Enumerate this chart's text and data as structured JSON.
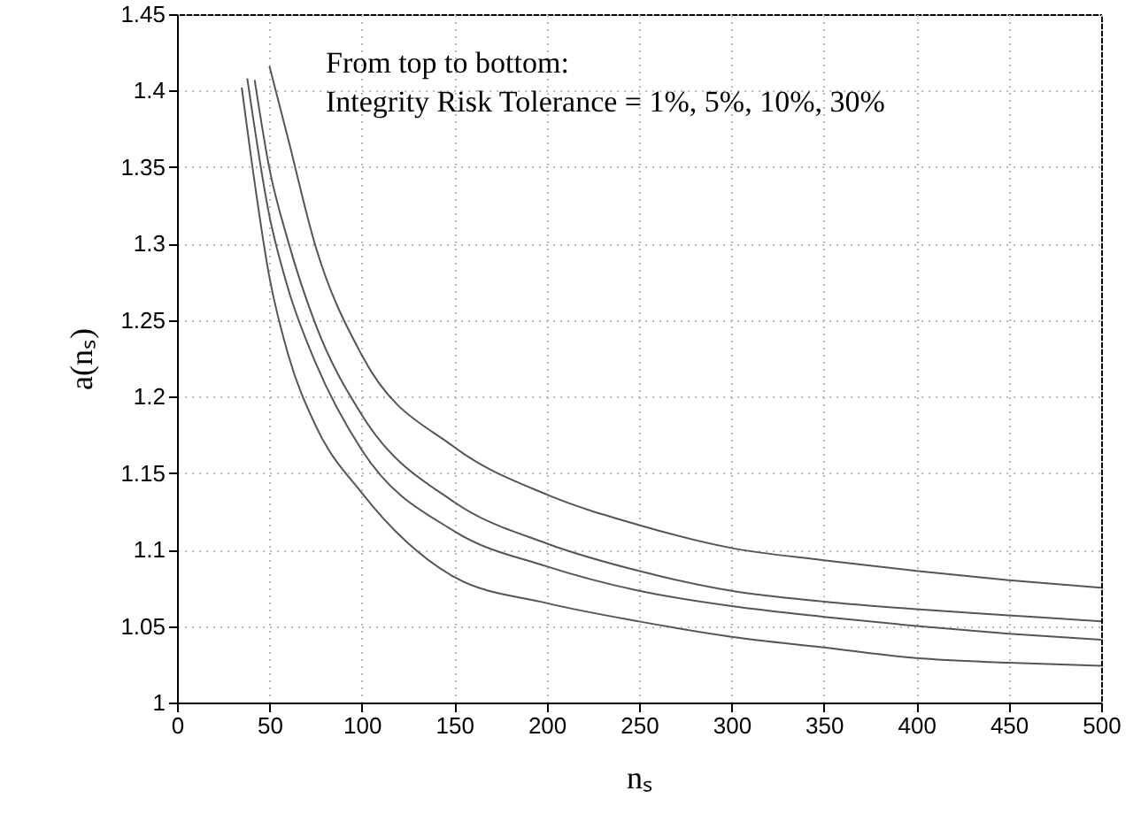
{
  "chart_data": {
    "type": "line",
    "xlabel": "nₛ",
    "ylabel": "a(nₛ)",
    "annotations": [
      "From top to bottom:",
      "Integrity Risk Tolerance = 1%, 5%, 10%, 30%"
    ],
    "xlim": [
      0,
      500
    ],
    "ylim": [
      1,
      1.45
    ],
    "xticks": [
      0,
      50,
      100,
      150,
      200,
      250,
      300,
      350,
      400,
      450,
      500
    ],
    "yticks": [
      1,
      1.05,
      1.1,
      1.15,
      1.2,
      1.25,
      1.3,
      1.35,
      1.4,
      1.45
    ],
    "grid": true,
    "line_style": "solid",
    "series": [
      {
        "color": "#555555",
        "x": [
          50,
          60,
          75,
          100,
          150,
          200,
          250,
          300,
          350,
          400,
          450,
          500
        ],
        "values": [
          1.416,
          1.369,
          1.298,
          1.227,
          1.167,
          1.136,
          1.116,
          1.101,
          1.093,
          1.086,
          1.08,
          1.075
        ]
      },
      {
        "color": "#555555",
        "x": [
          42,
          50,
          60,
          75,
          100,
          150,
          200,
          250,
          300,
          350,
          400,
          450,
          500
        ],
        "values": [
          1.407,
          1.349,
          1.302,
          1.247,
          1.188,
          1.131,
          1.104,
          1.086,
          1.073,
          1.066,
          1.061,
          1.057,
          1.053
        ]
      },
      {
        "color": "#555555",
        "x": [
          38,
          50,
          60,
          75,
          100,
          150,
          200,
          250,
          300,
          350,
          400,
          450,
          500
        ],
        "values": [
          1.408,
          1.318,
          1.271,
          1.222,
          1.165,
          1.112,
          1.089,
          1.073,
          1.063,
          1.056,
          1.05,
          1.045,
          1.041
        ]
      },
      {
        "color": "#555555",
        "x": [
          35,
          40,
          50,
          60,
          75,
          100,
          150,
          200,
          250,
          300,
          350,
          400,
          450,
          500
        ],
        "values": [
          1.402,
          1.357,
          1.278,
          1.228,
          1.181,
          1.137,
          1.082,
          1.065,
          1.053,
          1.043,
          1.036,
          1.029,
          1.026,
          1.024
        ]
      }
    ]
  }
}
